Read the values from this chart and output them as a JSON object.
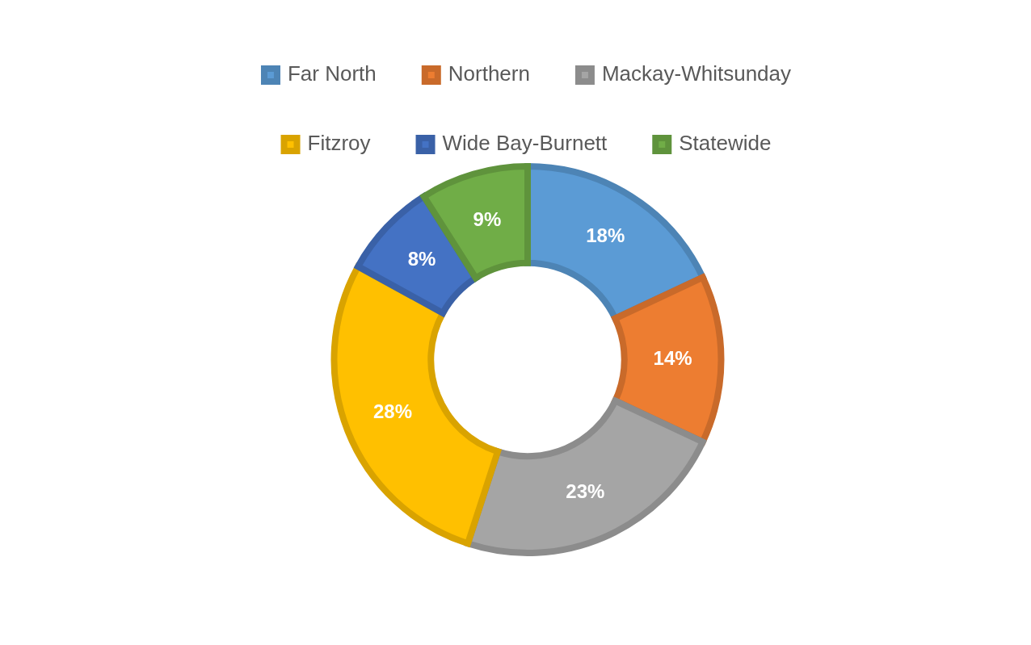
{
  "chart_data": {
    "type": "donut",
    "categories": [
      "Far North",
      "Northern",
      "Mackay-Whitsunday",
      "Fitzroy",
      "Wide Bay-Burnett",
      "Statewide"
    ],
    "values": [
      18,
      14,
      23,
      28,
      8,
      9
    ],
    "colors": [
      "#5b9bd5",
      "#ed7d31",
      "#a5a5a5",
      "#ffc000",
      "#4472c4",
      "#70ad47"
    ],
    "value_labels": [
      "18%",
      "14%",
      "23%",
      "28%",
      "8%",
      "9%"
    ],
    "legend": "top"
  }
}
